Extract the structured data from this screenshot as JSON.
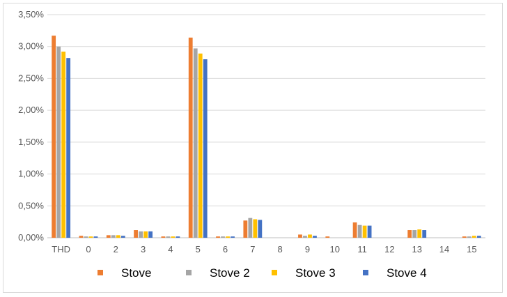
{
  "chart_data": {
    "type": "bar",
    "categories": [
      "THD",
      "0",
      "2",
      "3",
      "4",
      "5",
      "6",
      "7",
      "8",
      "9",
      "10",
      "11",
      "12",
      "13",
      "14",
      "15"
    ],
    "series": [
      {
        "name": "Stove",
        "color": "#ed7d31",
        "values": [
          3.17,
          0.03,
          0.04,
          0.12,
          0.02,
          3.14,
          0.02,
          0.27,
          0.0,
          0.05,
          0.02,
          0.24,
          0.0,
          0.12,
          0.0,
          0.02
        ]
      },
      {
        "name": "Stove 2",
        "color": "#a5a5a5",
        "values": [
          3.0,
          0.02,
          0.04,
          0.1,
          0.02,
          2.97,
          0.02,
          0.31,
          0.0,
          0.03,
          0.0,
          0.2,
          0.0,
          0.12,
          0.0,
          0.02
        ]
      },
      {
        "name": "Stove 3",
        "color": "#ffc000",
        "values": [
          2.92,
          0.02,
          0.04,
          0.1,
          0.02,
          2.89,
          0.02,
          0.29,
          0.0,
          0.05,
          0.0,
          0.19,
          0.0,
          0.13,
          0.0,
          0.03
        ]
      },
      {
        "name": "Stove 4",
        "color": "#4472c4",
        "values": [
          2.82,
          0.02,
          0.03,
          0.1,
          0.02,
          2.8,
          0.02,
          0.28,
          0.0,
          0.03,
          0.0,
          0.19,
          0.0,
          0.12,
          0.0,
          0.03
        ]
      }
    ],
    "ylim": [
      0,
      3.5
    ],
    "yticks": [
      "0,00%",
      "0,50%",
      "1,00%",
      "1,50%",
      "2,00%",
      "2,50%",
      "3,00%",
      "3,50%"
    ],
    "grid": true,
    "legend": "bottom",
    "xlabel": "",
    "ylabel": ""
  }
}
